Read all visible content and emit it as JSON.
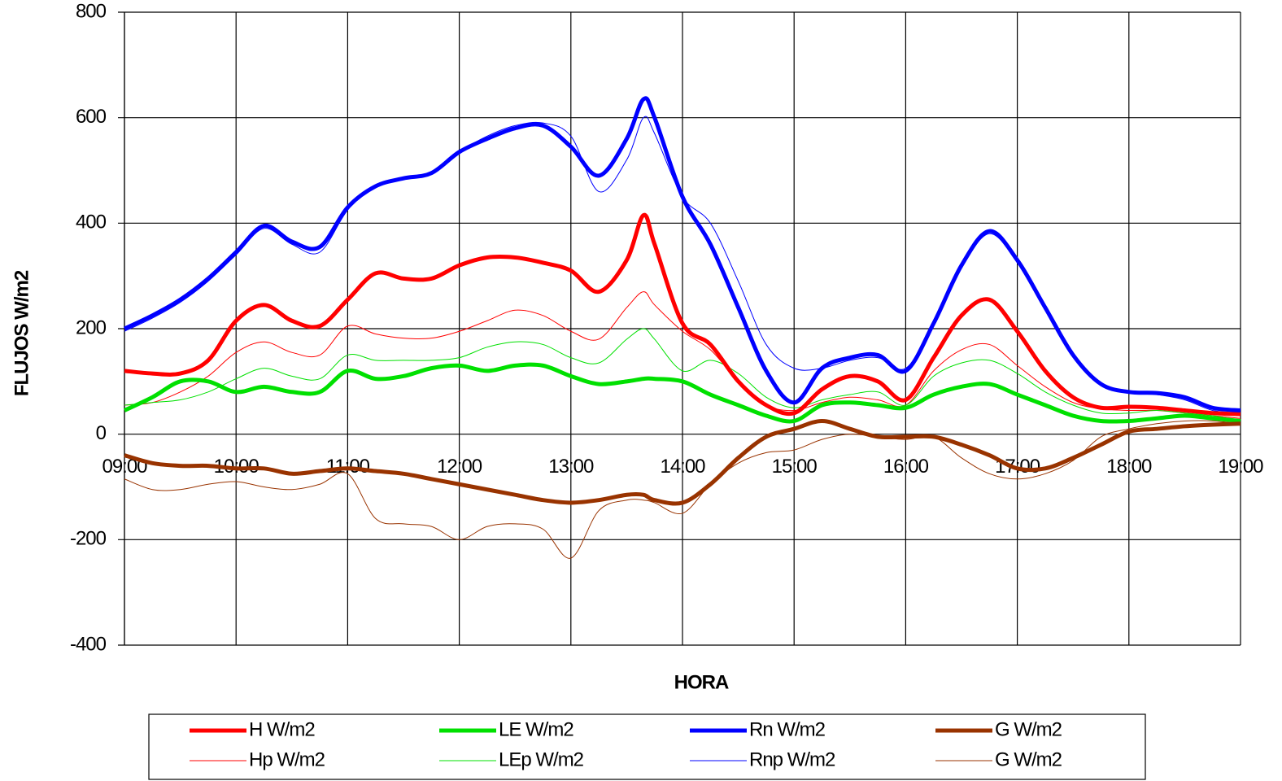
{
  "chart_data": {
    "type": "line",
    "y_label": "FLUJOS W/m2",
    "x_label": "HORA",
    "x": [
      9,
      9.25,
      9.5,
      9.75,
      10,
      10.25,
      10.5,
      10.75,
      11,
      11.25,
      11.5,
      11.75,
      12,
      12.25,
      12.5,
      12.75,
      13,
      13.25,
      13.5,
      13.65,
      13.75,
      14,
      14.25,
      14.5,
      14.75,
      15,
      15.25,
      15.5,
      15.75,
      16,
      16.25,
      16.5,
      16.75,
      17,
      17.25,
      17.5,
      17.75,
      18,
      18.25,
      18.5,
      18.75,
      19
    ],
    "xlim": [
      9,
      19
    ],
    "xticks": [
      {
        "value": 9,
        "label": "09:00"
      },
      {
        "value": 10,
        "label": "10:00"
      },
      {
        "value": 11,
        "label": "11:00"
      },
      {
        "value": 12,
        "label": "12:00"
      },
      {
        "value": 13,
        "label": "13:00"
      },
      {
        "value": 14,
        "label": "14:00"
      },
      {
        "value": 15,
        "label": "15:00"
      },
      {
        "value": 16,
        "label": "16:00"
      },
      {
        "value": 17,
        "label": "17:00"
      },
      {
        "value": 18,
        "label": "18:00"
      },
      {
        "value": 19,
        "label": "19:00"
      }
    ],
    "ylim": [
      -400,
      800
    ],
    "yticks": [
      -400,
      -200,
      0,
      200,
      400,
      600,
      800
    ],
    "grid": true,
    "series": [
      {
        "name": "H W/m2",
        "color": "#ff0000",
        "line_width": 5,
        "values": [
          120,
          115,
          115,
          140,
          215,
          245,
          215,
          205,
          255,
          305,
          295,
          295,
          320,
          335,
          335,
          325,
          310,
          270,
          330,
          415,
          360,
          210,
          170,
          100,
          55,
          40,
          85,
          110,
          100,
          65,
          145,
          225,
          255,
          195,
          120,
          70,
          50,
          52,
          50,
          45,
          40,
          38
        ]
      },
      {
        "name": "LE W/m2",
        "color": "#00e000",
        "line_width": 5,
        "values": [
          45,
          70,
          100,
          100,
          80,
          90,
          80,
          80,
          120,
          105,
          110,
          125,
          130,
          120,
          130,
          130,
          110,
          95,
          100,
          105,
          105,
          100,
          75,
          55,
          35,
          25,
          55,
          60,
          55,
          50,
          75,
          90,
          95,
          75,
          55,
          35,
          25,
          25,
          30,
          35,
          30,
          25
        ]
      },
      {
        "name": "Rn W/m2",
        "color": "#0000ff",
        "line_width": 5,
        "values": [
          200,
          225,
          255,
          295,
          345,
          395,
          365,
          355,
          430,
          470,
          485,
          495,
          535,
          560,
          580,
          585,
          545,
          490,
          560,
          635,
          600,
          450,
          360,
          240,
          120,
          60,
          125,
          145,
          150,
          120,
          210,
          320,
          385,
          330,
          240,
          150,
          95,
          80,
          78,
          70,
          50,
          45
        ]
      },
      {
        "name": "G W/m2",
        "color": "#993300",
        "line_width": 5,
        "values": [
          -40,
          -55,
          -60,
          -60,
          -65,
          -65,
          -75,
          -70,
          -65,
          -70,
          -75,
          -85,
          -95,
          -105,
          -115,
          -125,
          -130,
          -125,
          -115,
          -115,
          -125,
          -130,
          -95,
          -45,
          -5,
          10,
          25,
          10,
          -5,
          -5,
          -5,
          -20,
          -40,
          -65,
          -65,
          -45,
          -20,
          5,
          10,
          15,
          18,
          20
        ]
      },
      {
        "name": "Hp W/m2",
        "color": "#ff0000",
        "line_width": 1,
        "values": [
          55,
          60,
          80,
          110,
          155,
          175,
          155,
          150,
          205,
          190,
          182,
          182,
          195,
          215,
          235,
          225,
          195,
          180,
          240,
          270,
          245,
          195,
          160,
          100,
          55,
          45,
          60,
          70,
          65,
          55,
          120,
          160,
          170,
          130,
          90,
          60,
          48,
          45,
          45,
          40,
          35,
          30
        ]
      },
      {
        "name": "LEp W/m2",
        "color": "#00e000",
        "line_width": 1,
        "values": [
          55,
          60,
          65,
          80,
          105,
          125,
          110,
          105,
          150,
          140,
          140,
          140,
          145,
          165,
          175,
          170,
          145,
          135,
          180,
          200,
          180,
          120,
          140,
          115,
          70,
          50,
          65,
          75,
          80,
          55,
          110,
          135,
          140,
          115,
          80,
          55,
          40,
          40,
          45,
          40,
          35,
          25
        ]
      },
      {
        "name": "Rnp W/m2",
        "color": "#0000ff",
        "line_width": 1,
        "values": [
          195,
          220,
          250,
          290,
          340,
          390,
          360,
          345,
          425,
          470,
          485,
          495,
          535,
          565,
          585,
          590,
          565,
          460,
          520,
          600,
          570,
          450,
          400,
          290,
          170,
          125,
          125,
          140,
          145,
          125,
          210,
          315,
          380,
          325,
          235,
          150,
          95,
          80,
          75,
          65,
          45,
          40
        ]
      },
      {
        "name": "G W/m2",
        "color": "#993300",
        "line_width": 1,
        "values": [
          -85,
          -105,
          -105,
          -95,
          -90,
          -100,
          -105,
          -95,
          -75,
          -160,
          -170,
          -175,
          -200,
          -175,
          -170,
          -180,
          -235,
          -145,
          -125,
          -125,
          -130,
          -150,
          -95,
          -55,
          -35,
          -30,
          -10,
          0,
          -5,
          -10,
          -5,
          -45,
          -75,
          -85,
          -75,
          -50,
          -5,
          10,
          20,
          25,
          25,
          20
        ]
      }
    ]
  }
}
